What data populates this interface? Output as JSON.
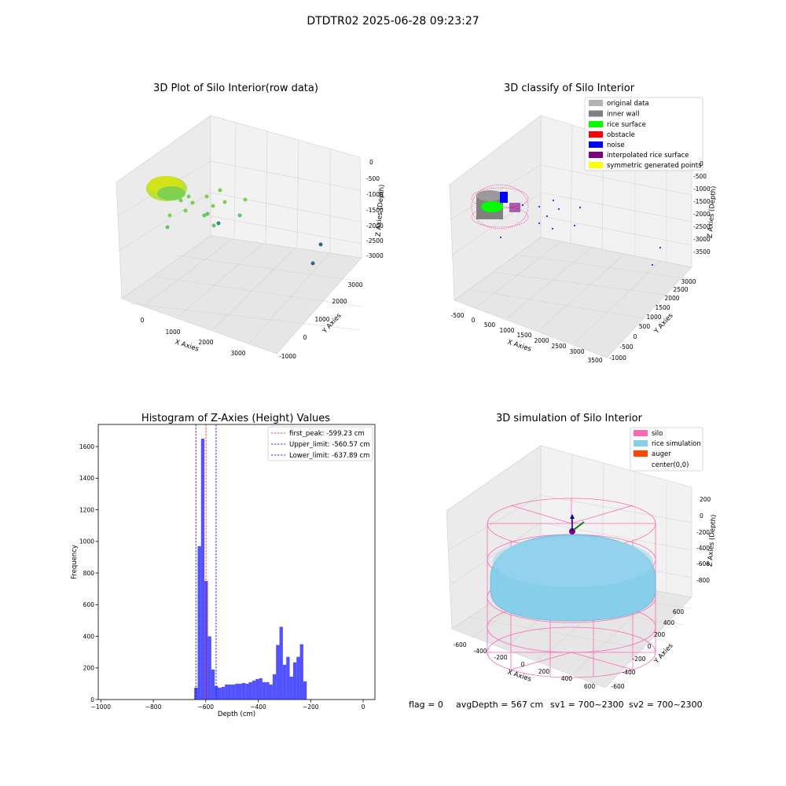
{
  "suptitle": "DTDTR02 2025-06-28 09:23:27",
  "status_line": {
    "flag": "flag = 0",
    "avg": "avgDepth = 567 cm",
    "sv1": "sv1 = 700~2300",
    "sv2": "sv2 = 700~2300"
  },
  "chart_data": [
    {
      "type": "scatter",
      "projection": "3d",
      "title": "3D Plot of Silo Interior(row data)",
      "xlabel": "X Axies",
      "ylabel": "Y Axies",
      "zlabel": "Z Axies (Depth)",
      "x_ticks": [
        "0",
        "1000",
        "2000",
        "3000"
      ],
      "y_ticks": [
        "-1000",
        "0",
        "1000",
        "2000",
        "3000"
      ],
      "z_ticks": [
        "0",
        "-500",
        "-1000",
        "-1500",
        "-2000",
        "-2500",
        "-3000"
      ],
      "grid": true,
      "colormap": "viridis"
    },
    {
      "type": "scatter",
      "projection": "3d",
      "title": "3D classify of Silo Interior",
      "xlabel": "X Axies",
      "ylabel": "Y Axies",
      "zlabel": "Z Axies (Depth)",
      "x_ticks": [
        "-500",
        "0",
        "500",
        "1000",
        "1500",
        "2000",
        "2500",
        "3000",
        "3500"
      ],
      "y_ticks": [
        "-1000",
        "-500",
        "0",
        "500",
        "1000",
        "1500",
        "2000",
        "2500",
        "3000"
      ],
      "z_ticks": [
        "0",
        "-500",
        "-1000",
        "-1500",
        "-2000",
        "-2500",
        "-3000",
        "-3500"
      ],
      "grid": true,
      "legend_position": "top-right",
      "legend": [
        {
          "label": "original data",
          "color": "#b3b3b3"
        },
        {
          "label": "inner wall",
          "color": "#808080"
        },
        {
          "label": "rice surface",
          "color": "#00ff00"
        },
        {
          "label": "obstacle",
          "color": "#ff0000"
        },
        {
          "label": "noise",
          "color": "#0000ff"
        },
        {
          "label": "interpolated rice surface",
          "color": "#800080"
        },
        {
          "label": "symmetric generated points",
          "color": "#ffff00"
        }
      ]
    },
    {
      "type": "bar",
      "title": "Histogram of Z-Axies (Height) Values",
      "xlabel": "Depth (cm)",
      "ylabel": "Frequency",
      "xlim": [
        -1010,
        45
      ],
      "ylim": [
        0,
        1740
      ],
      "bin_width": 13,
      "x_ticks": [
        -1000,
        -800,
        -600,
        -400,
        -200,
        0
      ],
      "y_ticks": [
        0,
        200,
        400,
        600,
        800,
        1000,
        1200,
        1400,
        1600
      ],
      "bar_color": "#0000ff",
      "bins": [
        [
          -644,
          75
        ],
        [
          -631,
          970
        ],
        [
          -618,
          1650
        ],
        [
          -605,
          750
        ],
        [
          -592,
          400
        ],
        [
          -579,
          190
        ],
        [
          -566,
          85
        ],
        [
          -553,
          75
        ],
        [
          -540,
          80
        ],
        [
          -527,
          95
        ],
        [
          -514,
          95
        ],
        [
          -501,
          95
        ],
        [
          -488,
          100
        ],
        [
          -475,
          100
        ],
        [
          -462,
          105
        ],
        [
          -449,
          100
        ],
        [
          -436,
          110
        ],
        [
          -423,
          120
        ],
        [
          -410,
          130
        ],
        [
          -397,
          135
        ],
        [
          -384,
          110
        ],
        [
          -371,
          110
        ],
        [
          -358,
          95
        ],
        [
          -345,
          160
        ],
        [
          -332,
          345
        ],
        [
          -319,
          460
        ],
        [
          -306,
          220
        ],
        [
          -293,
          270
        ],
        [
          -280,
          145
        ],
        [
          -267,
          235
        ],
        [
          -254,
          270
        ],
        [
          -241,
          350
        ],
        [
          -228,
          115
        ]
      ],
      "vlines": [
        {
          "label": "first_peak: -599.23 cm",
          "x": -599.23,
          "color": "#ff0000"
        },
        {
          "label": "Upper_limit: -560.57 cm",
          "x": -560.57,
          "color": "#0000ff"
        },
        {
          "label": "Lower_limit: -637.89 cm",
          "x": -637.89,
          "color": "#0000ff"
        }
      ],
      "legend_position": "top-right"
    },
    {
      "type": "surface",
      "projection": "3d",
      "title": "3D simulation of Silo Interior",
      "xlabel": "X Axies",
      "ylabel": "Y Axies",
      "zlabel": "Z Axies (Depth)",
      "x_ticks": [
        "-600",
        "-400",
        "-200",
        "0",
        "200",
        "400",
        "600"
      ],
      "y_ticks": [
        "-600",
        "-400",
        "-200",
        "0",
        "200",
        "400",
        "600"
      ],
      "z_ticks": [
        "200",
        "0",
        "-200",
        "-400",
        "-600",
        "-800"
      ],
      "grid": true,
      "legend_position": "top-right",
      "legend": [
        {
          "label": "silo",
          "color": "#ff69b4"
        },
        {
          "label": "rice simulation",
          "color": "#87ceeb"
        },
        {
          "label": "auger",
          "color": "#ff4500"
        },
        {
          "label": "center(0,0)",
          "color": "#ffffff"
        }
      ]
    }
  ]
}
